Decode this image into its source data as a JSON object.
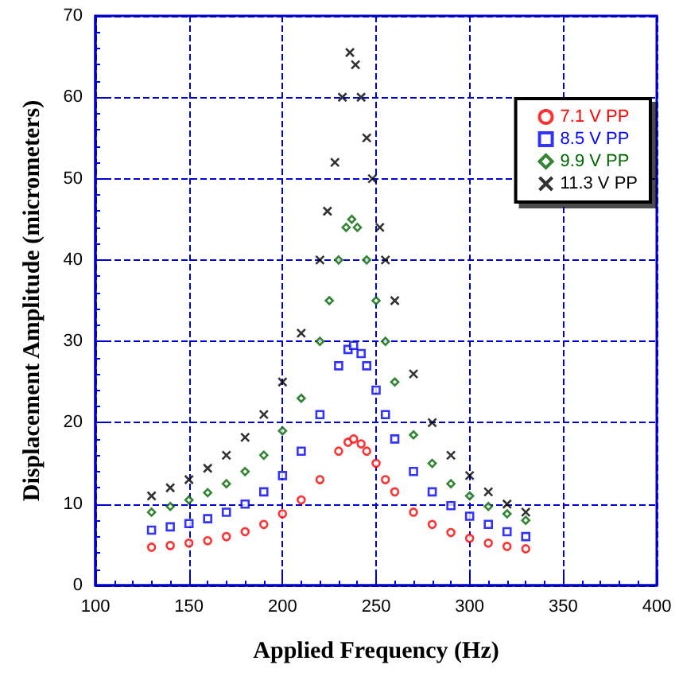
{
  "chart_data": {
    "type": "scatter",
    "xlabel": "Applied Frequency (Hz)",
    "ylabel": "Displacement Amplitude (micrometers)",
    "xlim": [
      100,
      400
    ],
    "xticks": [
      100,
      150,
      200,
      250,
      300,
      350,
      400
    ],
    "ylim": [
      0,
      70
    ],
    "yticks": [
      0,
      10,
      20,
      30,
      40,
      50,
      60,
      70
    ],
    "grid": true,
    "legend": "top right",
    "series": [
      {
        "name": "7.1 V PP",
        "color": "#ff0000",
        "marker": "circle",
        "x": [
          130,
          140,
          150,
          160,
          170,
          180,
          190,
          200,
          210,
          220,
          230,
          235,
          238,
          242,
          245,
          250,
          255,
          260,
          270,
          280,
          290,
          300,
          310,
          320,
          330
        ],
        "values": [
          4.7,
          4.9,
          5.2,
          5.5,
          6.0,
          6.6,
          7.5,
          8.8,
          10.5,
          13,
          16.5,
          17.6,
          18,
          17.4,
          16.5,
          15,
          13,
          11.5,
          9,
          7.5,
          6.5,
          5.8,
          5.2,
          4.8,
          4.5
        ]
      },
      {
        "name": "8.5 V PP",
        "color": "#0000ff",
        "marker": "square",
        "x": [
          130,
          140,
          150,
          160,
          170,
          180,
          190,
          200,
          210,
          220,
          230,
          235,
          238,
          242,
          245,
          250,
          255,
          260,
          270,
          280,
          290,
          300,
          310,
          320,
          330
        ],
        "values": [
          6.8,
          7.2,
          7.6,
          8.2,
          9,
          10,
          11.5,
          13.5,
          16.5,
          21,
          27,
          29,
          29.5,
          28.5,
          27,
          24,
          21,
          18,
          14,
          11.5,
          9.8,
          8.5,
          7.5,
          6.6,
          6
        ]
      },
      {
        "name": "9.9 V PP",
        "color": "#006600",
        "marker": "diamond",
        "x": [
          130,
          140,
          150,
          160,
          170,
          180,
          190,
          200,
          210,
          220,
          225,
          230,
          234,
          237,
          240,
          245,
          250,
          255,
          260,
          270,
          280,
          290,
          300,
          310,
          320,
          330
        ],
        "values": [
          9,
          9.7,
          10.5,
          11.4,
          12.5,
          14,
          16,
          19,
          23,
          30,
          35,
          40,
          44,
          45,
          44,
          40,
          35,
          30,
          25,
          18.5,
          15,
          12.5,
          11,
          9.7,
          8.8,
          8
        ]
      },
      {
        "name": "11.3 V PP",
        "color": "#000000",
        "marker": "cross",
        "x": [
          130,
          140,
          150,
          160,
          170,
          180,
          190,
          200,
          210,
          220,
          224,
          228,
          232,
          236,
          239,
          242,
          245,
          248,
          252,
          255,
          260,
          270,
          280,
          290,
          300,
          310,
          320,
          330
        ],
        "values": [
          11,
          12,
          13,
          14.4,
          16,
          18.2,
          21,
          25,
          31,
          40,
          46,
          52,
          60,
          65.5,
          64,
          60,
          55,
          50,
          44,
          40,
          35,
          26,
          20,
          16,
          13.5,
          11.5,
          10,
          9
        ]
      }
    ]
  }
}
